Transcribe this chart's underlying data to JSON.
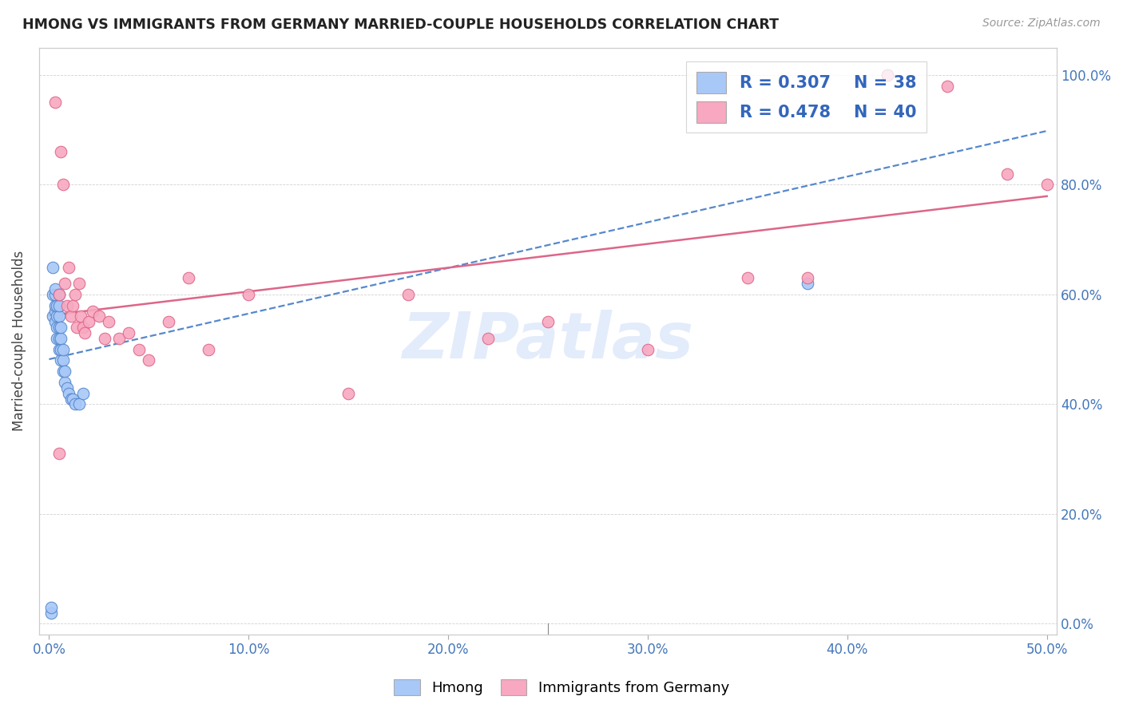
{
  "title": "HMONG VS IMMIGRANTS FROM GERMANY MARRIED-COUPLE HOUSEHOLDS CORRELATION CHART",
  "source": "Source: ZipAtlas.com",
  "xlabel_vals": [
    0.0,
    0.1,
    0.2,
    0.3,
    0.4,
    0.5
  ],
  "ylabel_vals": [
    0.0,
    0.2,
    0.4,
    0.6,
    0.8,
    1.0
  ],
  "xlim": [
    -0.005,
    0.505
  ],
  "ylim": [
    -0.02,
    1.05
  ],
  "ylabel": "Married-couple Households",
  "legend_label1": "Hmong",
  "legend_label2": "Immigrants from Germany",
  "R1": 0.307,
  "N1": 38,
  "R2": 0.478,
  "N2": 40,
  "color1": "#a8c8f8",
  "color2": "#f8a8c0",
  "line_color1": "#5588cc",
  "line_color2": "#dd6688",
  "watermark_color": "#ccddf8",
  "hmong_x": [
    0.001,
    0.001,
    0.002,
    0.002,
    0.002,
    0.003,
    0.003,
    0.003,
    0.003,
    0.003,
    0.004,
    0.004,
    0.004,
    0.004,
    0.005,
    0.005,
    0.005,
    0.005,
    0.005,
    0.005,
    0.006,
    0.006,
    0.006,
    0.006,
    0.007,
    0.007,
    0.007,
    0.008,
    0.008,
    0.009,
    0.01,
    0.011,
    0.012,
    0.013,
    0.015,
    0.017,
    0.38,
    0.42
  ],
  "hmong_y": [
    0.02,
    0.03,
    0.56,
    0.6,
    0.65,
    0.55,
    0.57,
    0.58,
    0.6,
    0.61,
    0.52,
    0.54,
    0.56,
    0.58,
    0.5,
    0.52,
    0.54,
    0.56,
    0.58,
    0.6,
    0.48,
    0.5,
    0.52,
    0.54,
    0.46,
    0.48,
    0.5,
    0.44,
    0.46,
    0.43,
    0.42,
    0.41,
    0.41,
    0.4,
    0.4,
    0.42,
    0.62,
    1.0
  ],
  "germany_x": [
    0.003,
    0.005,
    0.006,
    0.007,
    0.008,
    0.009,
    0.01,
    0.011,
    0.012,
    0.013,
    0.014,
    0.015,
    0.016,
    0.017,
    0.018,
    0.02,
    0.022,
    0.025,
    0.028,
    0.03,
    0.035,
    0.04,
    0.045,
    0.05,
    0.06,
    0.07,
    0.08,
    0.1,
    0.15,
    0.18,
    0.22,
    0.25,
    0.3,
    0.35,
    0.38,
    0.42,
    0.45,
    0.48,
    0.5,
    0.005
  ],
  "germany_y": [
    0.95,
    0.6,
    0.86,
    0.8,
    0.62,
    0.58,
    0.65,
    0.56,
    0.58,
    0.6,
    0.54,
    0.62,
    0.56,
    0.54,
    0.53,
    0.55,
    0.57,
    0.56,
    0.52,
    0.55,
    0.52,
    0.53,
    0.5,
    0.48,
    0.55,
    0.63,
    0.5,
    0.6,
    0.42,
    0.6,
    0.52,
    0.55,
    0.5,
    0.63,
    0.63,
    1.0,
    0.98,
    0.82,
    0.8,
    0.31
  ]
}
